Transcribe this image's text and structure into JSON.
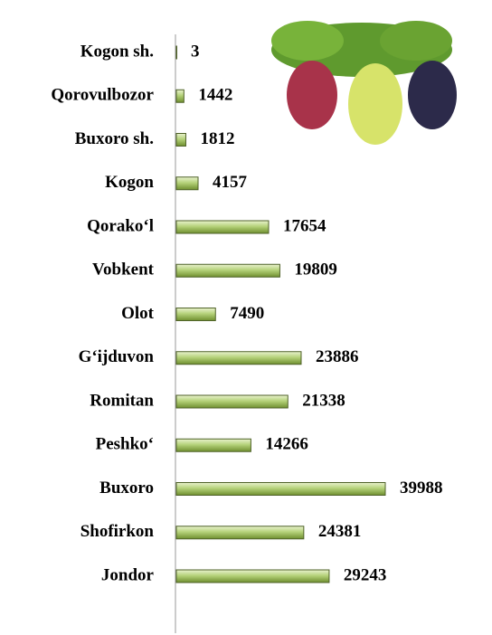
{
  "chart_data": {
    "type": "bar",
    "orientation": "horizontal",
    "categories": [
      "Kogon sh.",
      "Qorovulbozor",
      "Buxoro sh.",
      "Kogon",
      "Qorako‘l",
      "Vobkent",
      "Olot",
      "G‘ijduvon",
      "Romitan",
      "Peshko‘",
      "Buxoro",
      "Shofirkon",
      "Jondor"
    ],
    "values": [
      3,
      1442,
      1812,
      4157,
      17654,
      19809,
      7490,
      23886,
      21338,
      14266,
      39988,
      24381,
      29243
    ],
    "color": "#9bbb59"
  }
}
